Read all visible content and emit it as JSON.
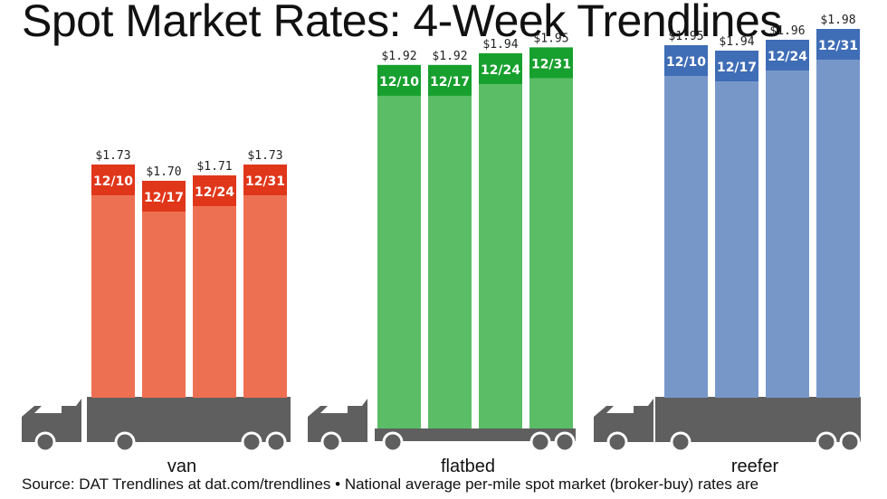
{
  "title": "Spot Market Rates: 4-Week Trendlines",
  "source": "Source: DAT Trendlines at dat.com/trendlines • National average per-mile spot market (broker-buy) rates are",
  "truck_color": "#5f5f5f",
  "chart_data": {
    "type": "bar",
    "title": "Spot Market Rates: 4-Week Trendlines",
    "ylim": [
      1.3,
      2.0
    ],
    "categories": [
      "12/10",
      "12/17",
      "12/24",
      "12/31"
    ],
    "groups": [
      {
        "name": "van",
        "values": [
          1.73,
          1.7,
          1.71,
          1.73
        ],
        "labels": [
          "$1.73",
          "$1.70",
          "$1.71",
          "$1.73"
        ],
        "color": "#ee7052",
        "cap_color": "#e0361a"
      },
      {
        "name": "flatbed",
        "values": [
          1.92,
          1.92,
          1.94,
          1.95
        ],
        "labels": [
          "$1.92",
          "$1.92",
          "$1.94",
          "$1.95"
        ],
        "color": "#5bbd66",
        "cap_color": "#17a02e"
      },
      {
        "name": "reefer",
        "values": [
          1.95,
          1.94,
          1.96,
          1.98
        ],
        "labels": [
          "$1.95",
          "$1.94",
          "$1.96",
          "$1.98"
        ],
        "color": "#7897c9",
        "cap_color": "#3f6db6"
      }
    ]
  }
}
